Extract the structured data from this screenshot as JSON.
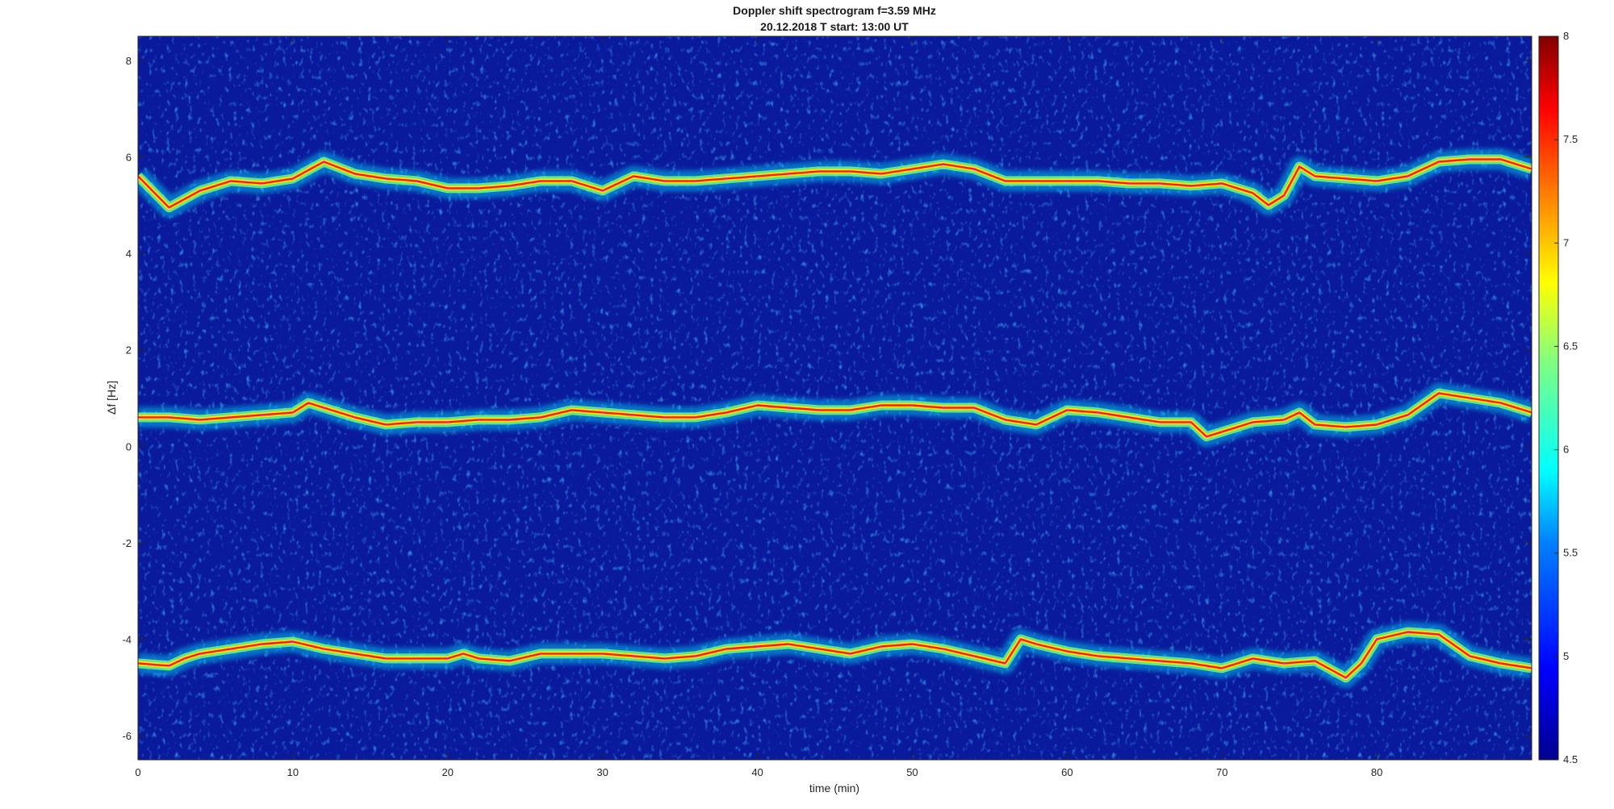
{
  "chart_data": {
    "type": "heatmap",
    "title": "Doppler shift spectrogram f=3.59 MHz",
    "subtitle": "20.12.2018   T start: 13:00 UT",
    "xlabel": "time (min)",
    "ylabel": "Δf [Hz]",
    "xlim": [
      0,
      90
    ],
    "ylim": [
      -6.5,
      8.5
    ],
    "x_ticks": [
      0,
      10,
      20,
      30,
      40,
      50,
      60,
      70,
      80
    ],
    "x_tick_labels": [
      "0",
      "10",
      "20",
      "30",
      "40",
      "50",
      "60",
      "70",
      "80"
    ],
    "y_ticks": [
      8,
      6,
      4,
      2,
      0,
      -2,
      -4,
      -6
    ],
    "y_tick_labels": [
      "8",
      "6",
      "4",
      "2",
      "0",
      "-2",
      "-4",
      "-6"
    ],
    "colorbar": {
      "range": [
        4.5,
        8
      ],
      "ticks": [
        8,
        7.5,
        7,
        6.5,
        6,
        5.5,
        5,
        4.5
      ],
      "tick_labels": [
        "8",
        "7.5",
        "7",
        "6.5",
        "6",
        "5.5",
        "5",
        "4.5"
      ],
      "colormap": "jet",
      "colors": [
        "#00008f",
        "#0000ff",
        "#0080ff",
        "#00ffff",
        "#80ff80",
        "#ffff00",
        "#ff8000",
        "#ff0000",
        "#800000"
      ]
    },
    "background_color": "#0a1a9c",
    "grid": false,
    "traces": [
      {
        "points": [
          [
            0,
            5.6
          ],
          [
            2,
            4.95
          ],
          [
            4,
            5.3
          ],
          [
            6,
            5.5
          ],
          [
            8,
            5.45
          ],
          [
            10,
            5.55
          ],
          [
            12,
            5.9
          ],
          [
            14,
            5.65
          ],
          [
            16,
            5.55
          ],
          [
            18,
            5.5
          ],
          [
            20,
            5.35
          ],
          [
            22,
            5.35
          ],
          [
            24,
            5.4
          ],
          [
            26,
            5.5
          ],
          [
            28,
            5.5
          ],
          [
            30,
            5.3
          ],
          [
            32,
            5.6
          ],
          [
            34,
            5.5
          ],
          [
            36,
            5.5
          ],
          [
            38,
            5.55
          ],
          [
            40,
            5.6
          ],
          [
            42,
            5.65
          ],
          [
            44,
            5.7
          ],
          [
            46,
            5.7
          ],
          [
            48,
            5.65
          ],
          [
            50,
            5.75
          ],
          [
            52,
            5.85
          ],
          [
            54,
            5.75
          ],
          [
            56,
            5.5
          ],
          [
            58,
            5.5
          ],
          [
            60,
            5.5
          ],
          [
            62,
            5.5
          ],
          [
            64,
            5.45
          ],
          [
            66,
            5.45
          ],
          [
            68,
            5.4
          ],
          [
            70,
            5.45
          ],
          [
            72,
            5.25
          ],
          [
            73,
            5.0
          ],
          [
            74,
            5.2
          ],
          [
            75,
            5.8
          ],
          [
            76,
            5.6
          ],
          [
            78,
            5.55
          ],
          [
            80,
            5.5
          ],
          [
            82,
            5.6
          ],
          [
            84,
            5.9
          ],
          [
            86,
            5.95
          ],
          [
            88,
            5.95
          ],
          [
            90,
            5.75
          ]
        ]
      },
      {
        "points": [
          [
            0,
            0.6
          ],
          [
            2,
            0.6
          ],
          [
            4,
            0.55
          ],
          [
            6,
            0.6
          ],
          [
            8,
            0.65
          ],
          [
            10,
            0.7
          ],
          [
            11,
            0.9
          ],
          [
            12,
            0.8
          ],
          [
            14,
            0.6
          ],
          [
            16,
            0.45
          ],
          [
            18,
            0.5
          ],
          [
            20,
            0.5
          ],
          [
            22,
            0.55
          ],
          [
            24,
            0.55
          ],
          [
            26,
            0.6
          ],
          [
            28,
            0.75
          ],
          [
            30,
            0.7
          ],
          [
            32,
            0.65
          ],
          [
            34,
            0.6
          ],
          [
            36,
            0.6
          ],
          [
            38,
            0.7
          ],
          [
            40,
            0.85
          ],
          [
            42,
            0.8
          ],
          [
            44,
            0.75
          ],
          [
            46,
            0.75
          ],
          [
            48,
            0.85
          ],
          [
            50,
            0.85
          ],
          [
            52,
            0.8
          ],
          [
            54,
            0.8
          ],
          [
            56,
            0.55
          ],
          [
            58,
            0.45
          ],
          [
            60,
            0.75
          ],
          [
            62,
            0.7
          ],
          [
            64,
            0.6
          ],
          [
            66,
            0.5
          ],
          [
            68,
            0.5
          ],
          [
            69,
            0.2
          ],
          [
            70,
            0.3
          ],
          [
            72,
            0.5
          ],
          [
            74,
            0.55
          ],
          [
            75,
            0.7
          ],
          [
            76,
            0.45
          ],
          [
            78,
            0.4
          ],
          [
            80,
            0.45
          ],
          [
            82,
            0.65
          ],
          [
            84,
            1.1
          ],
          [
            86,
            1.0
          ],
          [
            88,
            0.9
          ],
          [
            90,
            0.7
          ]
        ]
      },
      {
        "points": [
          [
            0,
            -4.5
          ],
          [
            2,
            -4.55
          ],
          [
            3,
            -4.4
          ],
          [
            4,
            -4.3
          ],
          [
            6,
            -4.2
          ],
          [
            8,
            -4.1
          ],
          [
            10,
            -4.05
          ],
          [
            12,
            -4.2
          ],
          [
            14,
            -4.3
          ],
          [
            16,
            -4.4
          ],
          [
            18,
            -4.4
          ],
          [
            20,
            -4.4
          ],
          [
            21,
            -4.3
          ],
          [
            22,
            -4.4
          ],
          [
            24,
            -4.45
          ],
          [
            26,
            -4.3
          ],
          [
            28,
            -4.3
          ],
          [
            30,
            -4.3
          ],
          [
            32,
            -4.35
          ],
          [
            34,
            -4.4
          ],
          [
            36,
            -4.35
          ],
          [
            38,
            -4.2
          ],
          [
            40,
            -4.15
          ],
          [
            42,
            -4.1
          ],
          [
            44,
            -4.2
          ],
          [
            46,
            -4.3
          ],
          [
            48,
            -4.15
          ],
          [
            50,
            -4.1
          ],
          [
            52,
            -4.2
          ],
          [
            54,
            -4.35
          ],
          [
            56,
            -4.5
          ],
          [
            57,
            -4.0
          ],
          [
            58,
            -4.1
          ],
          [
            60,
            -4.25
          ],
          [
            62,
            -4.35
          ],
          [
            64,
            -4.4
          ],
          [
            66,
            -4.45
          ],
          [
            68,
            -4.5
          ],
          [
            70,
            -4.6
          ],
          [
            72,
            -4.4
          ],
          [
            74,
            -4.5
          ],
          [
            76,
            -4.45
          ],
          [
            78,
            -4.8
          ],
          [
            79,
            -4.5
          ],
          [
            80,
            -4.0
          ],
          [
            82,
            -3.85
          ],
          [
            84,
            -3.9
          ],
          [
            86,
            -4.35
          ],
          [
            88,
            -4.5
          ],
          [
            90,
            -4.6
          ]
        ]
      }
    ]
  }
}
